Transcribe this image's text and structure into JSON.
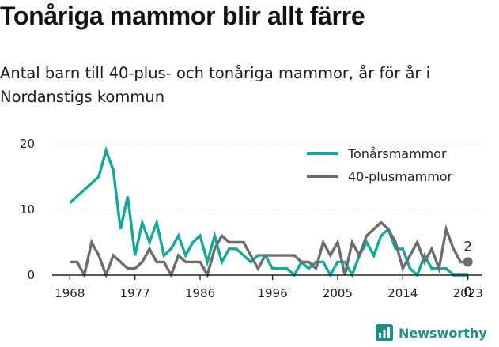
{
  "title": "Tonåriga mammor blir allt färre",
  "subtitle": "Antal barn till 40-plus- och tonåriga mammor, år för år i Nordanstigs kommun",
  "brand": {
    "name": "Newsworthy",
    "logo_icon": "bar-chart-icon"
  },
  "colors": {
    "teen": "#13a89a",
    "forty": "#6c6c70",
    "axis": "#222222",
    "brand": "#1e8f87"
  },
  "chart_data": {
    "type": "line",
    "title": "Tonåriga mammor blir allt färre",
    "x_ticks": [
      "1968",
      "1977",
      "1986",
      "1996",
      "2005",
      "2014",
      "2023"
    ],
    "y_ticks": [
      "0",
      "10",
      "20"
    ],
    "xlim": [
      1966,
      2025
    ],
    "ylim": [
      0,
      20
    ],
    "legend_position": "top-right",
    "end_labels": [
      "2",
      "0"
    ],
    "series": [
      {
        "name": "Tonårsmammor",
        "color": "#13a89a",
        "x": [
          1968,
          1969,
          1970,
          1971,
          1972,
          1973,
          1974,
          1975,
          1976,
          1977,
          1978,
          1979,
          1980,
          1981,
          1982,
          1983,
          1984,
          1985,
          1986,
          1987,
          1988,
          1989,
          1990,
          1991,
          1992,
          1993,
          1994,
          1995,
          1996,
          1997,
          1998,
          1999,
          2000,
          2001,
          2002,
          2003,
          2004,
          2005,
          2006,
          2007,
          2008,
          2009,
          2010,
          2011,
          2012,
          2013,
          2014,
          2015,
          2016,
          2017,
          2018,
          2019,
          2020,
          2021,
          2022,
          2023
        ],
        "y": [
          11,
          12,
          13,
          14,
          15,
          19,
          16,
          7,
          12,
          3,
          8,
          5,
          8,
          3,
          4,
          6,
          3,
          5,
          6,
          2,
          6,
          2,
          4,
          4,
          3,
          2,
          3,
          3,
          1,
          1,
          1,
          0,
          2,
          1,
          2,
          2,
          0,
          2,
          2,
          0,
          3,
          5,
          3,
          6,
          7,
          4,
          4,
          1,
          0,
          3,
          1,
          1,
          1,
          0,
          0,
          0
        ]
      },
      {
        "name": "40-plusmammor",
        "color": "#6c6c70",
        "x": [
          1968,
          1969,
          1970,
          1971,
          1972,
          1973,
          1974,
          1975,
          1976,
          1977,
          1978,
          1979,
          1980,
          1981,
          1982,
          1983,
          1984,
          1985,
          1986,
          1987,
          1988,
          1989,
          1990,
          1991,
          1992,
          1993,
          1994,
          1995,
          1996,
          1997,
          1998,
          1999,
          2000,
          2001,
          2002,
          2003,
          2004,
          2005,
          2006,
          2007,
          2008,
          2009,
          2010,
          2011,
          2012,
          2013,
          2014,
          2015,
          2016,
          2017,
          2018,
          2019,
          2020,
          2021,
          2022,
          2023
        ],
        "y": [
          2,
          2,
          0,
          5,
          3,
          0,
          3,
          2,
          1,
          1,
          2,
          4,
          2,
          2,
          0,
          3,
          2,
          2,
          2,
          0,
          4,
          6,
          5,
          5,
          5,
          3,
          1,
          3,
          3,
          3,
          3,
          3,
          2,
          2,
          1,
          5,
          3,
          5,
          0,
          5,
          3,
          6,
          7,
          8,
          7,
          5,
          1,
          3,
          5,
          2,
          4,
          1,
          7,
          4,
          2,
          2
        ]
      }
    ]
  }
}
